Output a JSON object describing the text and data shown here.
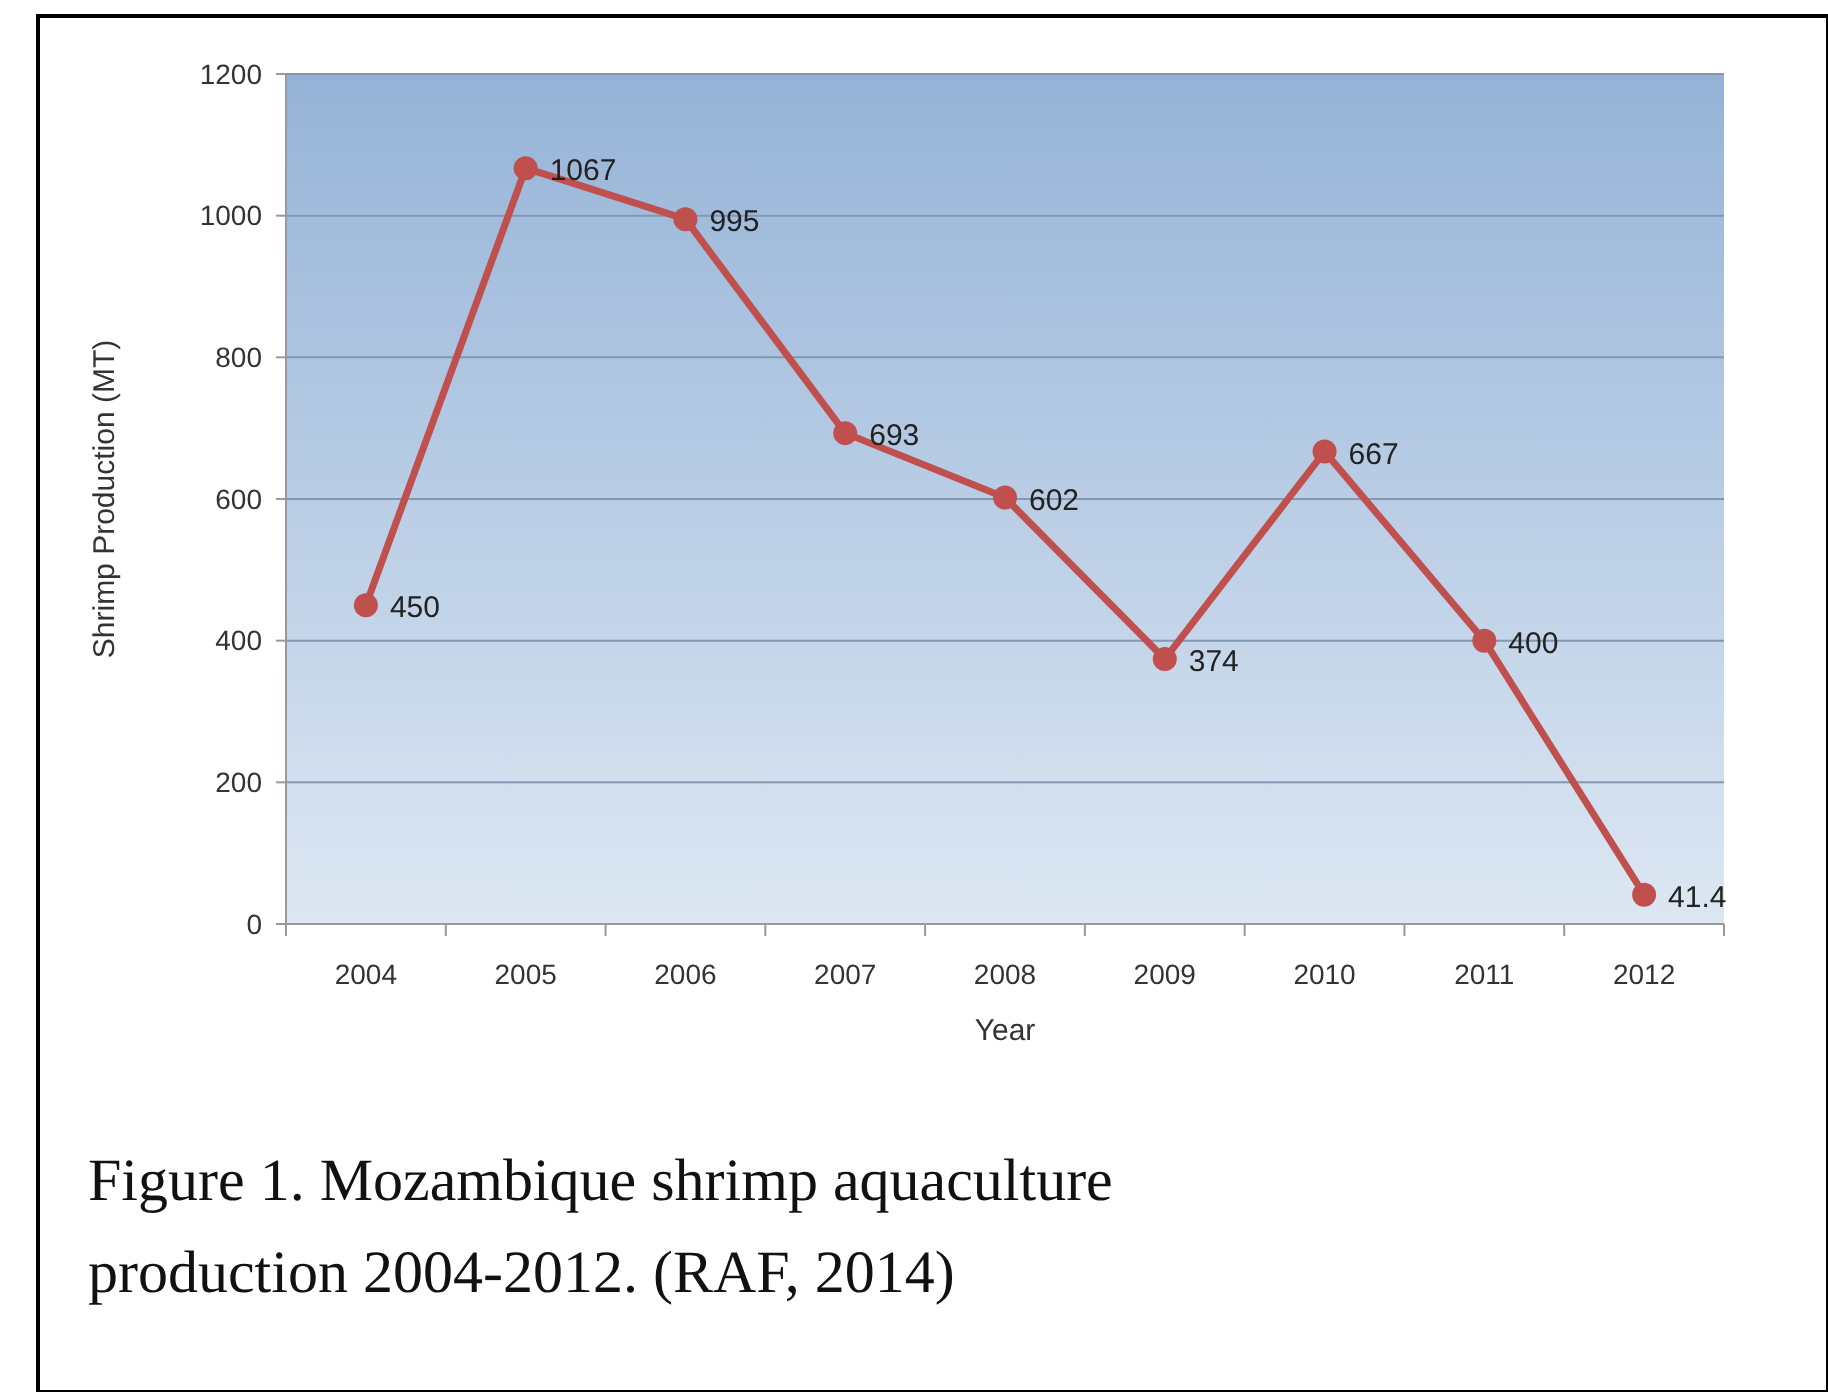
{
  "chart_data": {
    "type": "line",
    "xlabel": "Year",
    "ylabel": "Shrimp Production (MT)",
    "categories": [
      "2004",
      "2005",
      "2006",
      "2007",
      "2008",
      "2009",
      "2010",
      "2011",
      "2012"
    ],
    "series": [
      {
        "color": "#c0504d",
        "values": [
          450,
          1067,
          995,
          693,
          602,
          374,
          667,
          400,
          41.4
        ]
      }
    ],
    "ylim": [
      0,
      1200
    ],
    "yticks": [
      0,
      200,
      400,
      600,
      800,
      1000,
      1200
    ],
    "grid": "y",
    "marker": "circle",
    "line_style": "solid",
    "data_labels": true,
    "annotations": [
      "Figure 1. Mozambique shrimp aquaculture production 2004-2012. (RAF, 2014)"
    ]
  }
}
